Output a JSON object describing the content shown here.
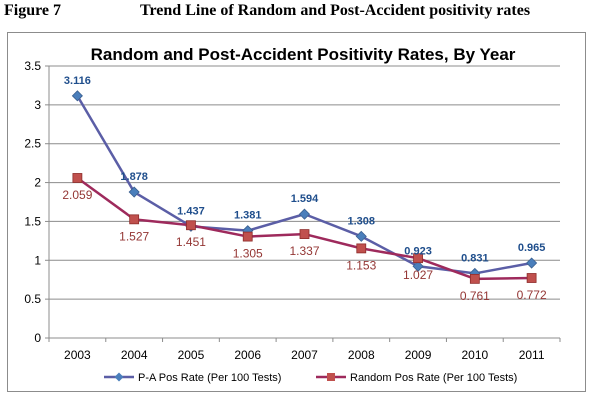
{
  "figure": {
    "number": "Figure 7",
    "title": "Trend Line of Random and Post-Accident positivity rates"
  },
  "chart_data": {
    "type": "line",
    "title": "Random and Post-Accident Positivity Rates, By Year",
    "xlabel": "",
    "ylabel": "",
    "categories": [
      "2003",
      "2004",
      "2005",
      "2006",
      "2007",
      "2008",
      "2009",
      "2010",
      "2011"
    ],
    "ylim": [
      0,
      3.5
    ],
    "yticks": [
      "0",
      "0.5",
      "1",
      "1.5",
      "2",
      "2.5",
      "3",
      "3.5"
    ],
    "grid": true,
    "legend_position": "bottom",
    "series": [
      {
        "name": "P-A Pos Rate (Per 100 Tests)",
        "values": [
          3.116,
          1.878,
          1.437,
          1.381,
          1.594,
          1.308,
          0.923,
          0.831,
          0.965
        ],
        "labels": [
          "3.116",
          "1.878",
          "1.437",
          "1.381",
          "1.594",
          "1.308",
          "0.923",
          "0.831",
          "0.965"
        ],
        "line_color": "#5b5ea6",
        "marker_color": "#4a7ebb",
        "label_color": "#1f4e8c",
        "marker": "diamond"
      },
      {
        "name": "Random Pos Rate (Per 100 Tests)",
        "values": [
          2.059,
          1.527,
          1.451,
          1.305,
          1.337,
          1.153,
          1.027,
          0.761,
          0.772
        ],
        "labels": [
          "2.059",
          "1.527",
          "1.451",
          "1.305",
          "1.337",
          "1.153",
          "1.027",
          "0.761",
          "0.772"
        ],
        "line_color": "#9e2a5c",
        "marker_color": "#c0504d",
        "label_color": "#943634",
        "marker": "square"
      }
    ]
  }
}
